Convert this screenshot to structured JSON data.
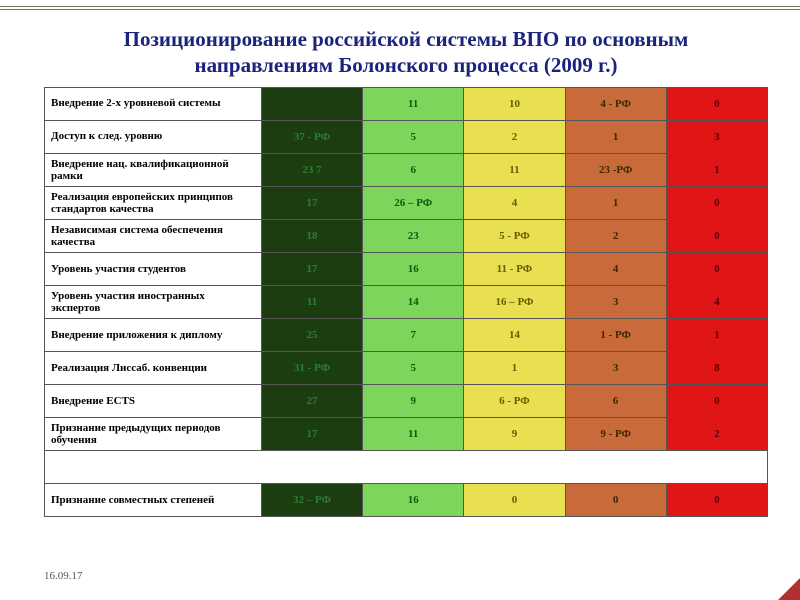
{
  "title": "Позиционирование российской системы ВПО по основным направлениям Болонского процесса (2009 г.)",
  "date": "16.09.17",
  "colors": {
    "dark_green": {
      "bg": "#1c3d0f",
      "fg": "#2e7d32"
    },
    "light_green": {
      "bg": "#7cd65b",
      "fg": "#0b5d0b"
    },
    "yellow": {
      "bg": "#e8e050",
      "fg": "#6b5b00"
    },
    "orange": {
      "bg": "#c96a3a",
      "fg": "#3a2a00"
    },
    "red": {
      "bg": "#e01616",
      "fg": "#5a0000"
    }
  },
  "columns": [
    "dark_green",
    "light_green",
    "yellow",
    "orange",
    "red"
  ],
  "rows": [
    {
      "label": "Внедрение 2-х уровневой системы",
      "cells": [
        "",
        "11",
        "10",
        "4 - РФ",
        "0"
      ]
    },
    {
      "label": "Доступ к след. уровню",
      "cells": [
        "37 - РФ",
        "5",
        "2",
        "1",
        "3"
      ]
    },
    {
      "label": "Внедрение нац. квалификационной рамки",
      "cells": [
        "23 7",
        "6",
        "11",
        "23 -РФ",
        "1"
      ]
    },
    {
      "label": "Реализация европейских принципов стандартов качества",
      "cells": [
        "17",
        "26 – РФ",
        "4",
        "1",
        "0"
      ]
    },
    {
      "label": "Независимая система обеспечения качества",
      "cells": [
        "18",
        "23",
        "5 - РФ",
        "2",
        "0"
      ]
    },
    {
      "label": "Уровень участия студентов",
      "cells": [
        "17",
        "16",
        "11 - РФ",
        "4",
        "0"
      ]
    },
    {
      "label": "Уровень участия иностранных экспертов",
      "cells": [
        "11",
        "14",
        "16 –  РФ",
        "3",
        "4"
      ]
    },
    {
      "label": "Внедрение приложения к диплому",
      "cells": [
        "25",
        "7",
        "14",
        "1 - РФ",
        "1"
      ]
    },
    {
      "label": "Реализация Лиссаб. конвенции",
      "cells": [
        "31 - РФ",
        "5",
        "1",
        "3",
        "8"
      ]
    },
    {
      "label": "Внедрение ECTS",
      "cells": [
        "27",
        "9",
        "6 - РФ",
        "6",
        "0"
      ]
    },
    {
      "label": "Признание предыдущих периодов обучения",
      "cells": [
        "17",
        "11",
        "9",
        "9 - РФ",
        "2"
      ]
    }
  ],
  "gap_after_row": 10,
  "final_row": {
    "label": "Признание совместных степеней",
    "cells": [
      "32 – РФ",
      "16",
      "0",
      "0",
      "0"
    ]
  },
  "col_widths": [
    "30%",
    "14%",
    "14%",
    "14%",
    "14%",
    "14%"
  ]
}
